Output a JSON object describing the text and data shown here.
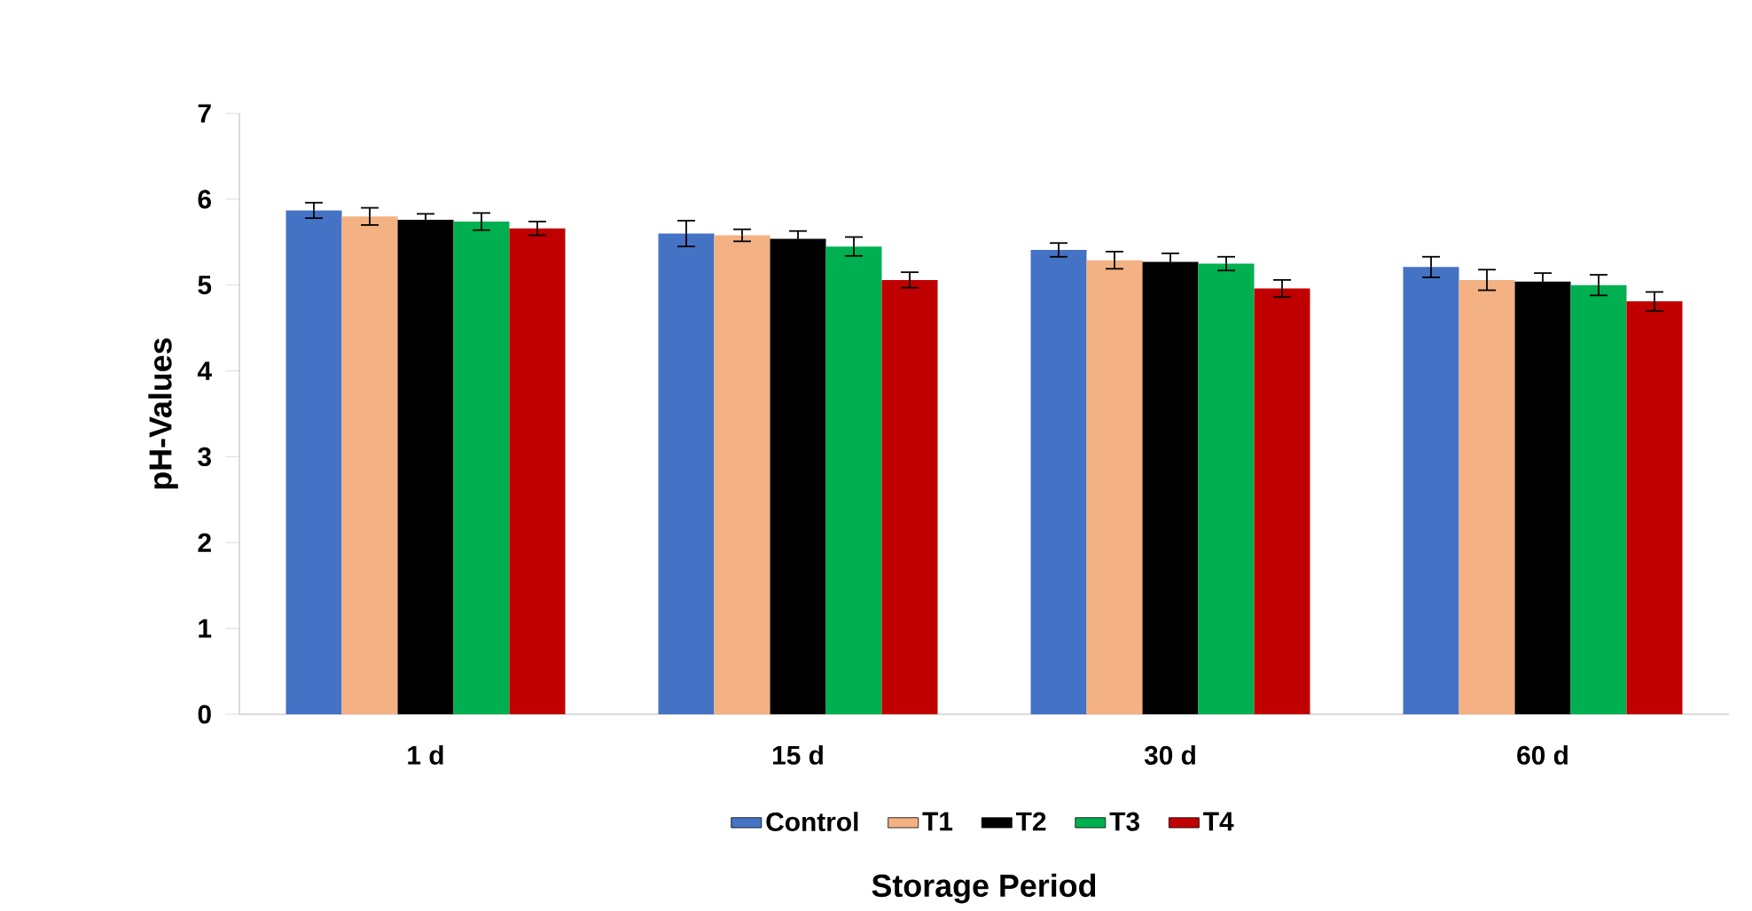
{
  "chart_data": {
    "type": "bar",
    "xlabel": "Storage Period",
    "ylabel": "pH-Values",
    "categories": [
      "1 d",
      "15 d",
      "30 d",
      "60 d"
    ],
    "series": [
      {
        "name": "Control",
        "color": "#4472c4",
        "values": [
          5.87,
          5.6,
          5.41,
          5.21
        ],
        "errors": [
          0.09,
          0.15,
          0.08,
          0.12
        ]
      },
      {
        "name": "T1",
        "color": "#f4b183",
        "values": [
          5.8,
          5.58,
          5.29,
          5.06
        ],
        "errors": [
          0.1,
          0.07,
          0.1,
          0.12
        ]
      },
      {
        "name": "T2",
        "color": "#000000",
        "values": [
          5.76,
          5.54,
          5.27,
          5.04
        ],
        "errors": [
          0.07,
          0.09,
          0.1,
          0.1
        ]
      },
      {
        "name": "T3",
        "color": "#00b050",
        "values": [
          5.74,
          5.45,
          5.25,
          5.0
        ],
        "errors": [
          0.1,
          0.11,
          0.08,
          0.12
        ]
      },
      {
        "name": "T4",
        "color": "#c00000",
        "values": [
          5.66,
          5.06,
          4.96,
          4.81
        ],
        "errors": [
          0.08,
          0.09,
          0.1,
          0.11
        ]
      }
    ],
    "ylim": [
      0,
      7
    ],
    "yticks": [
      0,
      1,
      2,
      3,
      4,
      5,
      6,
      7
    ],
    "grid": false,
    "legend": "bottom"
  }
}
